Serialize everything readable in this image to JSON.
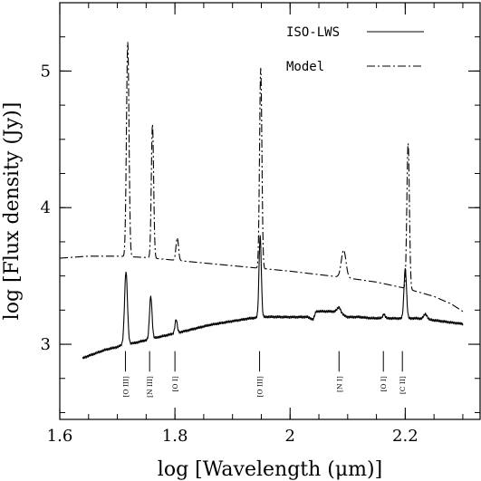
{
  "chart_data": {
    "type": "line",
    "xlabel": "log [Wavelength (μm)]",
    "ylabel": "log [Flux density (Jy)]",
    "xlim": [
      1.6,
      2.33
    ],
    "ylim": [
      2.45,
      5.5
    ],
    "xticks": [
      1.6,
      1.8,
      2.0,
      2.2
    ],
    "xtick_labels": [
      "1.6",
      "1.8",
      "2",
      "2.2"
    ],
    "yticks": [
      3,
      4,
      5
    ],
    "ytick_labels": [
      "3",
      "4",
      "5"
    ],
    "x_minor_step": 0.05,
    "y_minor_step": 0.25,
    "legend_position": "top-right",
    "series": [
      {
        "name": "ISO-LWS",
        "style": "solid",
        "color": "#000000",
        "baseline": [
          [
            1.64,
            2.9
          ],
          [
            1.66,
            2.93
          ],
          [
            1.68,
            2.96
          ],
          [
            1.7,
            2.98
          ],
          [
            1.71,
            3.0
          ],
          [
            1.73,
            3.01
          ],
          [
            1.75,
            3.03
          ],
          [
            1.77,
            3.05
          ],
          [
            1.8,
            3.08
          ],
          [
            1.83,
            3.11
          ],
          [
            1.86,
            3.14
          ],
          [
            1.9,
            3.17
          ],
          [
            1.93,
            3.19
          ],
          [
            1.96,
            3.2
          ],
          [
            2.0,
            3.2
          ],
          [
            2.03,
            3.2
          ],
          [
            2.04,
            3.18
          ],
          [
            2.045,
            3.24
          ],
          [
            2.08,
            3.24
          ],
          [
            2.09,
            3.22
          ],
          [
            2.1,
            3.2
          ],
          [
            2.12,
            3.2
          ],
          [
            2.14,
            3.19
          ],
          [
            2.16,
            3.19
          ],
          [
            2.18,
            3.19
          ],
          [
            2.2,
            3.19
          ],
          [
            2.22,
            3.19
          ],
          [
            2.24,
            3.18
          ],
          [
            2.26,
            3.17
          ],
          [
            2.28,
            3.16
          ],
          [
            2.3,
            3.15
          ]
        ],
        "lines": [
          {
            "x": 1.715,
            "peak": 3.53,
            "width": 0.0025
          },
          {
            "x": 1.758,
            "peak": 3.35,
            "width": 0.0022
          },
          {
            "x": 1.802,
            "peak": 3.18,
            "width": 0.002
          },
          {
            "x": 1.948,
            "peak": 3.79,
            "width": 0.002
          },
          {
            "x": 2.085,
            "peak": 3.27,
            "width": 0.003
          },
          {
            "x": 2.163,
            "peak": 3.22,
            "width": 0.002
          },
          {
            "x": 2.2,
            "peak": 3.55,
            "width": 0.0022
          },
          {
            "x": 2.235,
            "peak": 3.22,
            "width": 0.003
          }
        ]
      },
      {
        "name": "Model",
        "style": "dashdot",
        "color": "#000000",
        "baseline": [
          [
            1.6,
            3.63
          ],
          [
            1.65,
            3.645
          ],
          [
            1.7,
            3.645
          ],
          [
            1.75,
            3.635
          ],
          [
            1.8,
            3.615
          ],
          [
            1.85,
            3.595
          ],
          [
            1.9,
            3.575
          ],
          [
            1.95,
            3.555
          ],
          [
            2.0,
            3.535
          ],
          [
            2.05,
            3.51
          ],
          [
            2.1,
            3.485
          ],
          [
            2.15,
            3.455
          ],
          [
            2.2,
            3.41
          ],
          [
            2.25,
            3.35
          ],
          [
            2.28,
            3.295
          ],
          [
            2.3,
            3.24
          ]
        ],
        "lines": [
          {
            "x": 1.718,
            "peak": 5.21,
            "width": 0.0022
          },
          {
            "x": 1.761,
            "peak": 4.61,
            "width": 0.002
          },
          {
            "x": 1.804,
            "peak": 3.78,
            "width": 0.0022
          },
          {
            "x": 1.949,
            "peak": 5.02,
            "width": 0.002
          },
          {
            "x": 2.093,
            "peak": 3.69,
            "width": 0.004
          },
          {
            "x": 2.167,
            "peak": 3.44,
            "width": 0.003
          },
          {
            "x": 2.205,
            "peak": 4.47,
            "width": 0.0022
          }
        ]
      }
    ],
    "annotations": [
      {
        "x": 1.714,
        "text": "[O III]"
      },
      {
        "x": 1.756,
        "text": "[N III]"
      },
      {
        "x": 1.8,
        "text": "[O I]"
      },
      {
        "x": 1.947,
        "text": "[O III]"
      },
      {
        "x": 2.085,
        "text": "[N I]"
      },
      {
        "x": 2.162,
        "text": "[O I]"
      },
      {
        "x": 2.195,
        "text": "[C II]"
      }
    ],
    "annotation_levels": {
      "top": 2.95,
      "bottom": 2.8
    }
  }
}
